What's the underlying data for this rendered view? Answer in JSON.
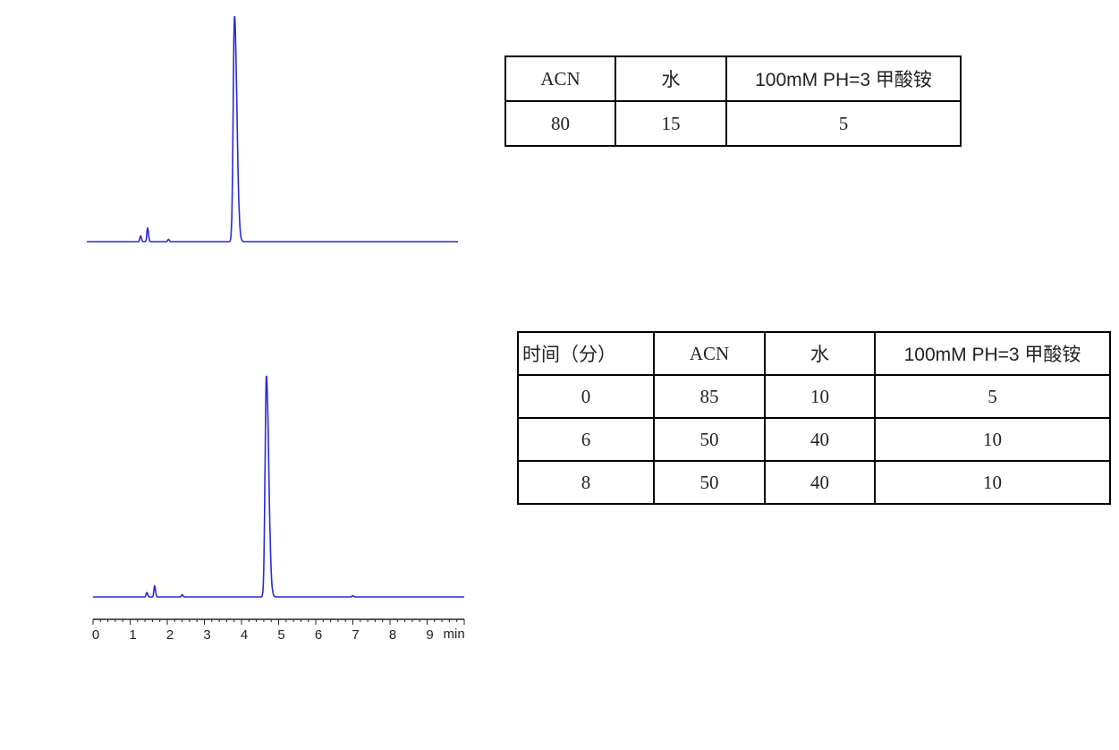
{
  "chart_data": [
    {
      "type": "line",
      "title": "",
      "xlabel": "",
      "ylabel": "",
      "xlim": [
        0,
        10
      ],
      "x_unit": "min",
      "tick_labels_shown": false,
      "line_color": "#2a2ad8",
      "peaks": [
        {
          "rt": 1.45,
          "rel_height": 2.5
        },
        {
          "rt": 1.64,
          "rel_height": 6
        },
        {
          "rt": 2.2,
          "rel_height": 1
        },
        {
          "rt": 3.98,
          "rel_height": 100
        }
      ]
    },
    {
      "type": "line",
      "title": "",
      "xlabel": "",
      "ylabel": "",
      "xlim": [
        0,
        10
      ],
      "x_unit": "min",
      "xticks": [
        "0",
        "1",
        "2",
        "3",
        "4",
        "5",
        "6",
        "7",
        "8",
        "9"
      ],
      "unit_label": "min",
      "line_color": "#2a2ad8",
      "peaks": [
        {
          "rt": 1.45,
          "rel_height": 2
        },
        {
          "rt": 1.66,
          "rel_height": 5
        },
        {
          "rt": 2.4,
          "rel_height": 1
        },
        {
          "rt": 4.67,
          "rel_height": 100
        },
        {
          "rt": 7.0,
          "rel_height": 0.6
        }
      ]
    }
  ],
  "table_isocratic": {
    "headers": [
      "ACN",
      "水",
      "100mM PH=3 甲酸铵"
    ],
    "rows": [
      [
        "80",
        "15",
        "5"
      ]
    ]
  },
  "table_gradient": {
    "headers": [
      "时间（分）",
      "ACN",
      "水",
      "100mM PH=3 甲酸铵"
    ],
    "rows": [
      [
        "0",
        "85",
        "10",
        "5"
      ],
      [
        "6",
        "50",
        "40",
        "10"
      ],
      [
        "8",
        "50",
        "40",
        "10"
      ]
    ]
  }
}
